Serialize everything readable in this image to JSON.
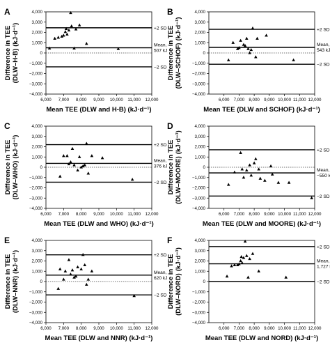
{
  "chart_data": [
    {
      "type": "scatter",
      "panel": "A",
      "xlabel": "Mean TEE (DLW and H-B) (kJ·d⁻¹)",
      "ylabel_line1": "Difference in TEE",
      "ylabel_line2": "(DLW–H-B)",
      "ylabel_line3": "(kJ·d⁻¹)",
      "xlim": [
        6000,
        12000
      ],
      "ylim": [
        -4000,
        4000
      ],
      "xticks": [
        "6,000",
        "7,000",
        "8,000",
        "9,000",
        "10,000",
        "11,000",
        "12,000"
      ],
      "yticks": [
        "−4,000",
        "−3,000",
        "−2,000",
        "−1,000",
        "0",
        "1,000",
        "2,000",
        "3,000",
        "4,000"
      ],
      "mean": 507,
      "upper": 2450,
      "lower": -1350,
      "mean_label": "Mean,",
      "mean_value_label": "507 kJ",
      "upper_label": "+2 SD",
      "lower_label": "−2 SD",
      "points": [
        [
          6200,
          450
        ],
        [
          6500,
          1400
        ],
        [
          6700,
          1500
        ],
        [
          6900,
          1600
        ],
        [
          7000,
          1700
        ],
        [
          7100,
          2050
        ],
        [
          7150,
          2350
        ],
        [
          7200,
          1800
        ],
        [
          7300,
          2200
        ],
        [
          7400,
          3900
        ],
        [
          7450,
          2600
        ],
        [
          7600,
          450
        ],
        [
          7700,
          2300
        ],
        [
          7900,
          2700
        ],
        [
          8300,
          900
        ],
        [
          10100,
          400
        ]
      ]
    },
    {
      "type": "scatter",
      "panel": "B",
      "xlabel": "Mean TEE (DLW and SCHOF) (kJ·d⁻¹)",
      "ylabel_line1": "Difference in TEE",
      "ylabel_line2": "(DLW–SCHOF)",
      "ylabel_line3": "(kJ·d⁻¹)",
      "xlim": [
        5000,
        12000
      ],
      "ylim": [
        -4000,
        4000
      ],
      "xticks": [
        "6,000",
        "7,000",
        "8,000",
        "9,000",
        "10,000",
        "11,000",
        "12,000"
      ],
      "yticks": [
        "−4,000",
        "−3,000",
        "−2,000",
        "−1,000",
        "0",
        "1,000",
        "2,000",
        "3,000",
        "4,000"
      ],
      "mean": 543,
      "upper": 2300,
      "lower": -1100,
      "mean_label": "Mean,",
      "mean_value_label": "543 kJ",
      "upper_label": "+2 SD",
      "lower_label": "−2 SD",
      "points": [
        [
          6300,
          -700
        ],
        [
          6600,
          1000
        ],
        [
          6900,
          400
        ],
        [
          7000,
          500
        ],
        [
          7100,
          1200
        ],
        [
          7300,
          800
        ],
        [
          7400,
          700
        ],
        [
          7500,
          1400
        ],
        [
          7600,
          400
        ],
        [
          7700,
          0
        ],
        [
          7800,
          300
        ],
        [
          7900,
          2400
        ],
        [
          8100,
          -400
        ],
        [
          8200,
          1400
        ],
        [
          8800,
          1700
        ],
        [
          10600,
          -700
        ]
      ]
    },
    {
      "type": "scatter",
      "panel": "C",
      "xlabel": "Mean TEE (DLW and WHO) (kJ·d⁻¹)",
      "ylabel_line1": "Difference in TEE",
      "ylabel_line2": "(DLW–WHO)",
      "ylabel_line3": "(kJ·d⁻¹)",
      "xlim": [
        6000,
        12000
      ],
      "ylim": [
        -4000,
        4000
      ],
      "xticks": [
        "6,000",
        "7,000",
        "8,000",
        "9,000",
        "10,000",
        "11,000",
        "12,000"
      ],
      "yticks": [
        "−4,000",
        "−3,000",
        "−2,000",
        "−1,000",
        "0",
        "1,000",
        "2,000",
        "3,000",
        "4,000"
      ],
      "mean": 376,
      "upper": 2200,
      "lower": -1450,
      "mean_label": "Mean,",
      "mean_value_label": "376 kJ",
      "upper_label": "+2 SD",
      "lower_label": "−2 SD",
      "points": [
        [
          6800,
          -900
        ],
        [
          7000,
          1100
        ],
        [
          7200,
          1100
        ],
        [
          7300,
          300
        ],
        [
          7400,
          500
        ],
        [
          7500,
          1800
        ],
        [
          7600,
          200
        ],
        [
          7800,
          -300
        ],
        [
          7900,
          1000
        ],
        [
          8000,
          0
        ],
        [
          8100,
          100
        ],
        [
          8200,
          200
        ],
        [
          8300,
          2300
        ],
        [
          8400,
          -600
        ],
        [
          8600,
          1100
        ],
        [
          9200,
          900
        ],
        [
          10900,
          -1200
        ]
      ]
    },
    {
      "type": "scatter",
      "panel": "D",
      "xlabel": "Mean TEE (DLW and MOORE) (kJ·d⁻¹)",
      "ylabel_line1": "Difference in TEE",
      "ylabel_line2": "(DLW–MOORE)",
      "ylabel_line3": "(kJ·d⁻¹)",
      "xlim": [
        5000,
        12000
      ],
      "ylim": [
        -4000,
        4000
      ],
      "xticks": [
        "6,000",
        "7,000",
        "8,000",
        "9,000",
        "10,000",
        "11,000",
        "12,000"
      ],
      "yticks": [
        "−4,000",
        "−3,000",
        "−2,000",
        "−1,000",
        "0",
        "1,000",
        "2,000",
        "3,000",
        "4,000"
      ],
      "mean": -550,
      "upper": 1700,
      "lower": -2800,
      "mean_label": "Mean,",
      "mean_value_label": "−550 k",
      "upper_label": "+2 SD",
      "lower_label": "−2 SD",
      "points": [
        [
          6300,
          -1700
        ],
        [
          6700,
          -500
        ],
        [
          7100,
          1400
        ],
        [
          7200,
          -200
        ],
        [
          7300,
          -1000
        ],
        [
          7500,
          -300
        ],
        [
          7700,
          200
        ],
        [
          7800,
          -800
        ],
        [
          8000,
          400
        ],
        [
          8100,
          800
        ],
        [
          8300,
          -200
        ],
        [
          8400,
          -1100
        ],
        [
          8700,
          -1300
        ],
        [
          9100,
          100
        ],
        [
          9200,
          -700
        ],
        [
          9600,
          -1500
        ],
        [
          10300,
          -1500
        ],
        [
          11800,
          -3000
        ]
      ]
    },
    {
      "type": "scatter",
      "panel": "E",
      "xlabel": "Mean TEE (DLW and NNR) (kJ·d⁻¹)",
      "ylabel_line1": "Difference in TEE",
      "ylabel_line2": "(DLW–NNR)",
      "ylabel_line3": "(kJ·d⁻¹)",
      "xlim": [
        6000,
        12000
      ],
      "ylim": [
        -4000,
        4000
      ],
      "xticks": [
        "6,000",
        "7,000",
        "8,000",
        "9,000",
        "10,000",
        "11,000",
        "12,000"
      ],
      "yticks": [
        "−4,000",
        "−3,000",
        "−2,000",
        "−1,000",
        "0",
        "1,000",
        "2,000",
        "3,000",
        "4,000"
      ],
      "mean": 620,
      "upper": 2600,
      "lower": -1300,
      "mean_label": "Mean,",
      "mean_value_label": "620 kJ",
      "upper_label": "+2 SD",
      "lower_label": "−2 SD",
      "points": [
        [
          6700,
          -700
        ],
        [
          6800,
          1200
        ],
        [
          7000,
          200
        ],
        [
          7100,
          1000
        ],
        [
          7300,
          2100
        ],
        [
          7400,
          700
        ],
        [
          7500,
          1100
        ],
        [
          7600,
          400
        ],
        [
          7700,
          500
        ],
        [
          7800,
          1400
        ],
        [
          8000,
          1200
        ],
        [
          8100,
          2600
        ],
        [
          8200,
          1600
        ],
        [
          8300,
          -300
        ],
        [
          8400,
          200
        ],
        [
          8600,
          1000
        ],
        [
          11000,
          -1400
        ]
      ]
    },
    {
      "type": "scatter",
      "panel": "F",
      "xlabel": "Mean TEE (DLW and NORD) (kJ·d⁻¹)",
      "ylabel_line1": "Difference in TEE",
      "ylabel_line2": "(DLW–NORD)",
      "ylabel_line3": "(kJ·d⁻¹)",
      "xlim": [
        5000,
        12000
      ],
      "ylim": [
        -4000,
        4000
      ],
      "xticks": [
        "6,000",
        "7,000",
        "8,000",
        "9,000",
        "10,000",
        "11,000",
        "12,000"
      ],
      "yticks": [
        "−4,000",
        "−3,000",
        "−2,000",
        "−1,000",
        "0",
        "1,000",
        "2,000",
        "3,000",
        "4,000"
      ],
      "mean": 1727,
      "upper": 3400,
      "lower": 0,
      "mean_label": "Mean,",
      "mean_value_label": "1,727 kJ",
      "upper_label": "+2 SD",
      "lower_label": "−2 SD",
      "points": [
        [
          6200,
          500
        ],
        [
          6500,
          1500
        ],
        [
          6700,
          1600
        ],
        [
          6900,
          1600
        ],
        [
          7000,
          1700
        ],
        [
          7100,
          2000
        ],
        [
          7150,
          2400
        ],
        [
          7200,
          1800
        ],
        [
          7300,
          2300
        ],
        [
          7400,
          3900
        ],
        [
          7500,
          2500
        ],
        [
          7600,
          400
        ],
        [
          7700,
          2200
        ],
        [
          7900,
          2700
        ],
        [
          8300,
          1000
        ],
        [
          10100,
          400
        ]
      ]
    }
  ]
}
